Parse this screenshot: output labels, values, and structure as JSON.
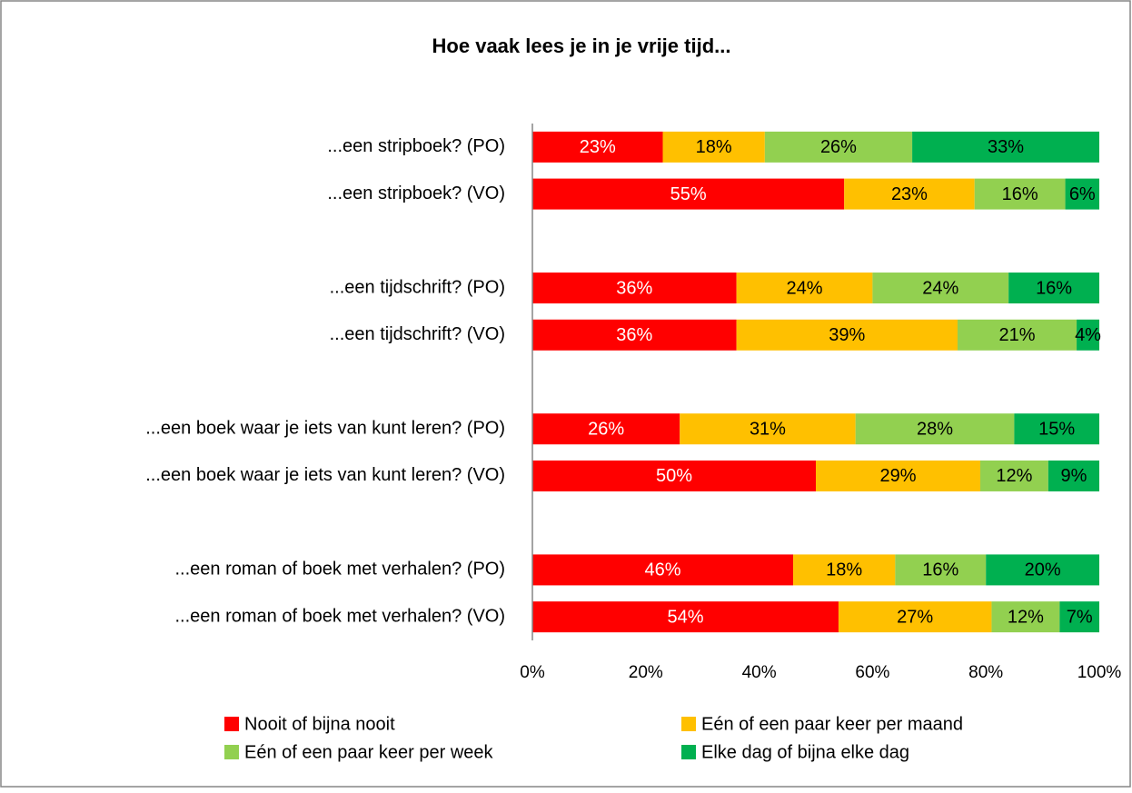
{
  "chart_data": {
    "type": "stacked_barh",
    "title": "Hoe vaak lees je in je vrije tijd...",
    "categories": [
      "...een stripboek? (PO)",
      "...een stripboek? (VO)",
      null,
      "...een tijdschrift? (PO)",
      "...een tijdschrift? (VO)",
      null,
      "...een boek waar je iets van kunt leren? (PO)",
      "...een boek waar je iets van kunt leren? (VO)",
      null,
      "...een roman of boek met verhalen? (PO)",
      "...een roman of boek met verhalen? (VO)"
    ],
    "series": [
      {
        "name": "Nooit of bijna nooit",
        "color": "#ff0000",
        "values": [
          23,
          55,
          null,
          36,
          36,
          null,
          26,
          50,
          null,
          46,
          54
        ],
        "value_labels": [
          "23%",
          "55%",
          null,
          "36%",
          "36%",
          null,
          "26%",
          "50%",
          null,
          "46%",
          "54%"
        ]
      },
      {
        "name": "Eén of een paar keer per maand",
        "color": "#ffc000",
        "values": [
          18,
          23,
          null,
          24,
          39,
          null,
          31,
          29,
          null,
          18,
          27
        ],
        "value_labels": [
          "18%",
          "23%",
          null,
          "24%",
          "39%",
          null,
          "31%",
          "29%",
          null,
          "18%",
          "27%"
        ]
      },
      {
        "name": "Eén of een paar keer per week",
        "color": "#92d050",
        "values": [
          26,
          16,
          null,
          24,
          21,
          null,
          28,
          12,
          null,
          16,
          12
        ],
        "value_labels": [
          "26%",
          "16%",
          null,
          "24%",
          "21%",
          null,
          "28%",
          "12%",
          null,
          "16%",
          "12%"
        ]
      },
      {
        "name": "Elke dag of bijna elke dag",
        "color": "#00b050",
        "values": [
          33,
          6,
          null,
          16,
          4,
          null,
          15,
          9,
          null,
          20,
          7
        ],
        "value_labels": [
          "33%",
          "6%",
          null,
          "16%",
          "4%",
          null,
          "15%",
          "9%",
          null,
          "20%",
          "7%"
        ]
      }
    ],
    "xlim": [
      0,
      100
    ],
    "xticks": [
      {
        "value": 0,
        "label": "0%"
      },
      {
        "value": 20,
        "label": "20%"
      },
      {
        "value": 40,
        "label": "40%"
      },
      {
        "value": 60,
        "label": "60%"
      },
      {
        "value": 80,
        "label": "80%"
      },
      {
        "value": 100,
        "label": "100%"
      }
    ],
    "legend": "bottom"
  }
}
